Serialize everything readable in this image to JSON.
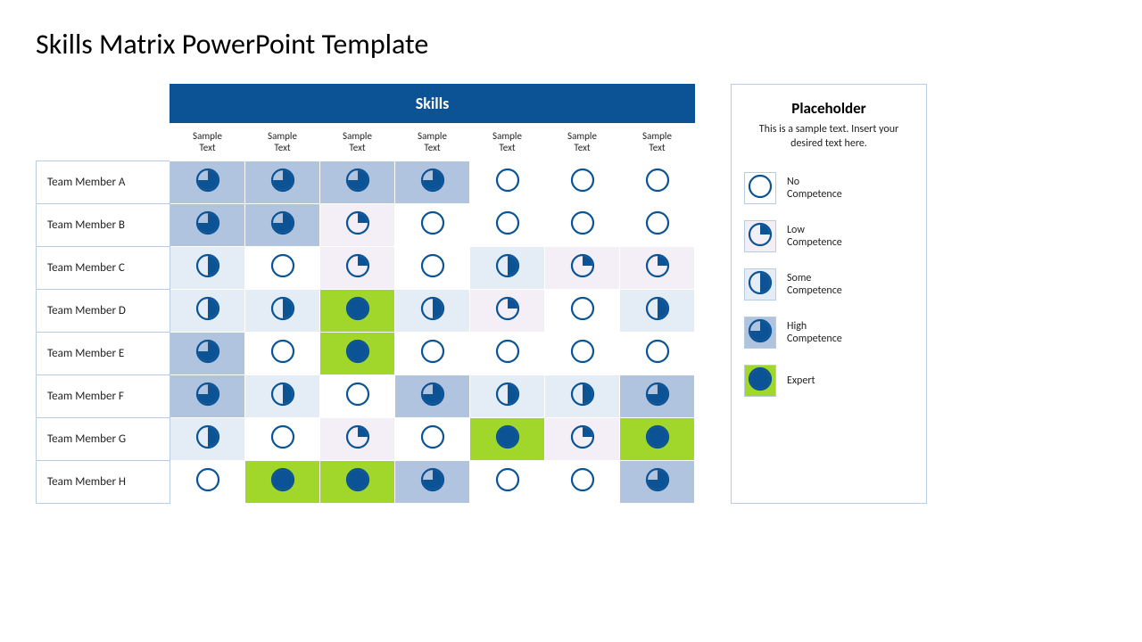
{
  "title": "Skills Matrix PowerPoint Template",
  "skills_header": "Skills",
  "columns": [
    "Sample Text",
    "Sample Text",
    "Sample Text",
    "Sample Text",
    "Sample Text",
    "Sample Text",
    "Sample Text"
  ],
  "rows": [
    {
      "label": "Team Member A",
      "cells": [
        3,
        3,
        3,
        3,
        0,
        0,
        0
      ]
    },
    {
      "label": "Team Member B",
      "cells": [
        3,
        3,
        1,
        0,
        0,
        0,
        0
      ]
    },
    {
      "label": "Team Member C",
      "cells": [
        2,
        0,
        1,
        0,
        2,
        1,
        1
      ]
    },
    {
      "label": "Team Member D",
      "cells": [
        2,
        2,
        4,
        2,
        1,
        0,
        2
      ]
    },
    {
      "label": "Team Member E",
      "cells": [
        3,
        0,
        4,
        0,
        0,
        0,
        0
      ]
    },
    {
      "label": "Team Member F",
      "cells": [
        3,
        2,
        0,
        3,
        2,
        2,
        3
      ]
    },
    {
      "label": "Team Member G",
      "cells": [
        2,
        0,
        1,
        0,
        4,
        1,
        4
      ]
    },
    {
      "label": "Team Member H",
      "cells": [
        0,
        4,
        4,
        3,
        0,
        0,
        3
      ]
    }
  ],
  "legend": {
    "title": "Placeholder",
    "description": "This is a sample text. Insert your desired text here.",
    "items": [
      {
        "level": 0,
        "label": "No Competence"
      },
      {
        "level": 1,
        "label": "Low Competence"
      },
      {
        "level": 2,
        "label": "Some Competence"
      },
      {
        "level": 3,
        "label": "High Competence"
      },
      {
        "level": 4,
        "label": "Expert"
      }
    ]
  },
  "style": {
    "cell_bg": {
      "0": "#ffffff",
      "1": "#f4eef6",
      "2": "#e4ecf5",
      "3": "#b0c3df",
      "4": "#a1d62a"
    },
    "circle_color": "#0b5394",
    "circle_outer_r": 12,
    "circle_stroke": 2.2,
    "header_bg": "#0b5394",
    "header_color": "#ffffff",
    "border_color": "#b8cce4",
    "title_fontsize": 32,
    "col_header_fontsize": 11,
    "row_label_fontsize": 13,
    "legend_title_fontsize": 17,
    "legend_label_fontsize": 12
  }
}
